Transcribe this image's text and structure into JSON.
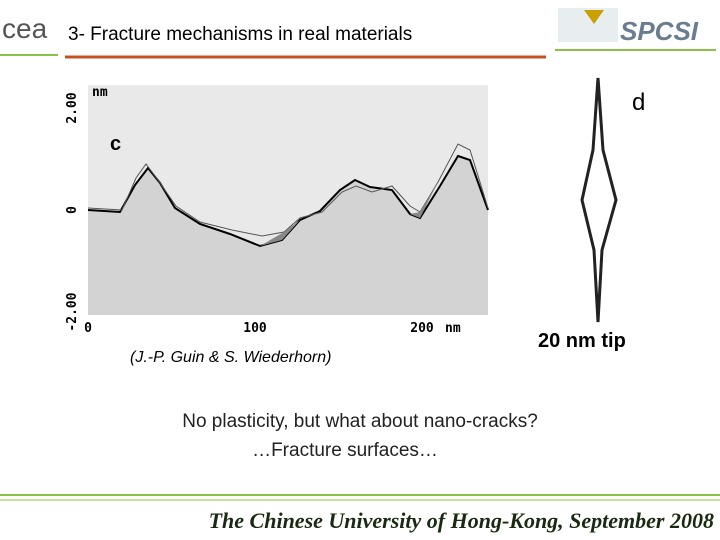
{
  "header": {
    "title": "3- Fracture mechanisms in real materials",
    "left_logo": "cea",
    "right_logo": "SPCSI"
  },
  "figure_c": {
    "panel_label": "c",
    "y_unit": "nm",
    "y_tick_labels": [
      "2.00",
      "0",
      "-2.00"
    ],
    "x_tick_labels": [
      "0",
      "100",
      "200"
    ],
    "x_unit": "nm"
  },
  "figure_d": {
    "panel_label": "d",
    "caption": "20 nm tip"
  },
  "credit": "(J.-P. Guin & S. Wiederhorn)",
  "body": [
    "No plasticity, but what about nano-cracks?",
    "…Fracture surfaces…"
  ],
  "footer": "The Chinese University of Hong-Kong, September 2008"
}
